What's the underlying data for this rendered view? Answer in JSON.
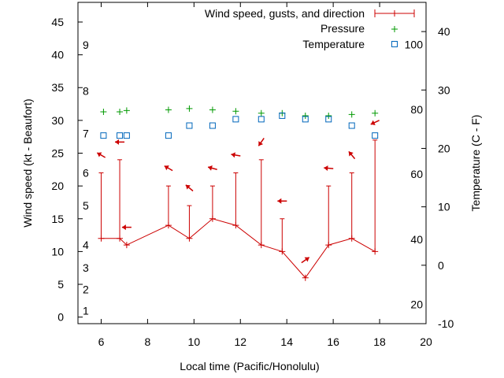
{
  "chart_data": {
    "type": "line",
    "xlabel": "Local time (Pacific/Honolulu)",
    "ylabel": "Wind speed (kt - Beaufort)",
    "y2label": "Temperature (C - F)",
    "xlim": [
      5,
      20
    ],
    "ylim": [
      -1,
      48
    ],
    "y2lim": [
      -10,
      45
    ],
    "xticks": [
      6,
      8,
      10,
      12,
      14,
      16,
      18,
      20
    ],
    "yticks": [
      0,
      5,
      10,
      15,
      20,
      25,
      30,
      35,
      40,
      45
    ],
    "y2ticks": [
      -10,
      0,
      10,
      20,
      30,
      40
    ],
    "beaufort_labels": [
      {
        "label": "1",
        "kt": 1
      },
      {
        "label": "2",
        "kt": 4.2
      },
      {
        "label": "3",
        "kt": 7.5
      },
      {
        "label": "4",
        "kt": 11
      },
      {
        "label": "5",
        "kt": 17
      },
      {
        "label": "6",
        "kt": 22
      },
      {
        "label": "7",
        "kt": 28
      },
      {
        "label": "8",
        "kt": 34.5
      },
      {
        "label": "9",
        "kt": 41.5
      }
    ],
    "fahrenheit_labels": [
      {
        "label": "20",
        "c": -6.7
      },
      {
        "label": "40",
        "c": 4.4
      },
      {
        "label": "60",
        "c": 15.6
      },
      {
        "label": "80",
        "c": 26.7
      },
      {
        "label": "100",
        "c": 37.8
      }
    ],
    "legend": [
      "Wind speed, gusts, and direction",
      "Pressure",
      "Temperature"
    ],
    "wind": {
      "name": "Wind speed, gusts, and direction",
      "color": "#cc0000",
      "x": [
        6.0,
        6.8,
        7.1,
        8.9,
        9.8,
        10.8,
        11.8,
        12.9,
        13.8,
        14.8,
        15.8,
        16.8,
        17.8
      ],
      "speed": [
        12,
        12,
        11,
        14,
        12,
        15,
        14,
        11,
        10,
        6,
        11,
        12,
        10
      ],
      "gust": [
        22,
        24,
        null,
        20,
        17,
        20,
        22,
        24,
        15,
        null,
        20,
        22,
        27
      ],
      "arrow_deg": [
        210,
        180,
        180,
        210,
        220,
        195,
        190,
        125,
        180,
        325,
        185,
        230,
        155
      ]
    },
    "pressure": {
      "name": "Pressure",
      "color": "#009900",
      "x": [
        6.1,
        6.8,
        7.1,
        8.9,
        9.8,
        10.8,
        11.8,
        12.9,
        13.8,
        14.8,
        15.8,
        16.8,
        17.8
      ],
      "y": [
        31.3,
        31.3,
        31.5,
        31.6,
        31.8,
        31.6,
        31.4,
        31.1,
        31.1,
        30.7,
        30.7,
        30.9,
        31.1
      ]
    },
    "temperature": {
      "name": "Temperature",
      "color": "#0066bb",
      "x": [
        6.1,
        6.8,
        7.1,
        8.9,
        9.8,
        10.8,
        11.8,
        12.9,
        13.8,
        14.8,
        15.8,
        16.8,
        17.8
      ],
      "y": [
        22.2,
        22.2,
        22.2,
        22.2,
        23.9,
        23.9,
        25.0,
        25.0,
        25.6,
        25.0,
        25.0,
        23.9,
        22.2
      ]
    }
  }
}
